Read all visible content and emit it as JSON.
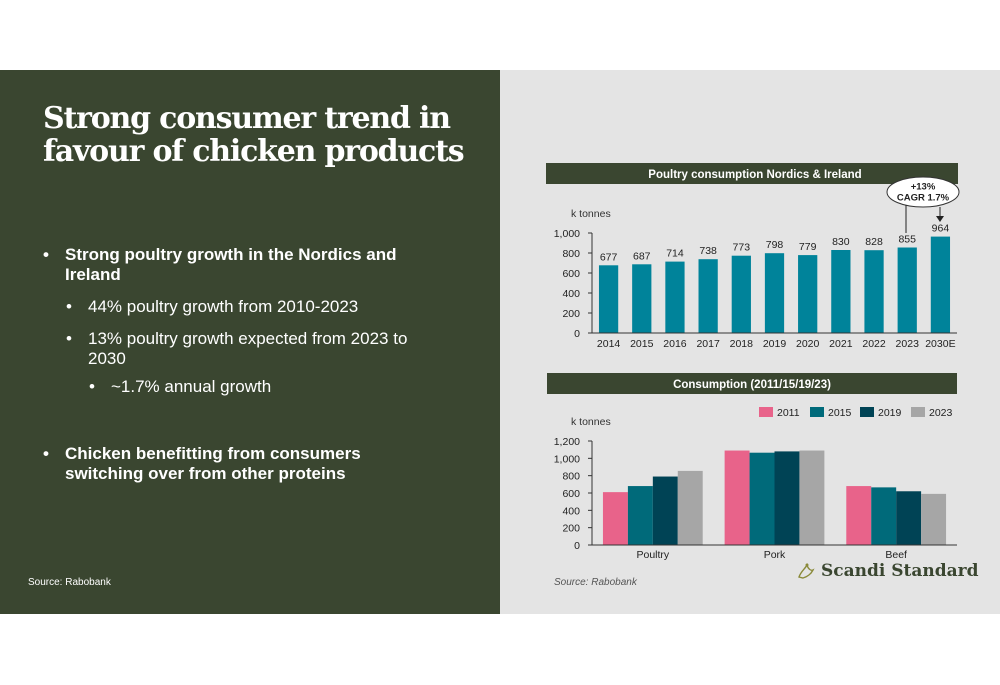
{
  "slide": {
    "title": "Strong consumer trend in favour of chicken products",
    "bullets": [
      {
        "level": 1,
        "text": "Strong poultry growth in the Nordics and Ireland"
      },
      {
        "level": 2,
        "text": "44% poultry growth from 2010-2023"
      },
      {
        "level": 2,
        "text": "13% poultry growth expected from 2023 to 2030"
      },
      {
        "level": 3,
        "text": "~1.7% annual growth"
      },
      {
        "level": 1,
        "text": "Chicken benefitting from consumers switching over from other proteins"
      }
    ],
    "source_left": "Source: Rabobank",
    "source_right": "Source: Rabobank",
    "logo_text": "Scandi Standard"
  },
  "colors": {
    "dark_green": "#3a4630",
    "bar_teal": "#00839a",
    "s2011": "#e8638a",
    "s2015": "#006a7a",
    "s2019": "#004355",
    "s2023": "#a6a6a6"
  },
  "chart_data": [
    {
      "type": "bar",
      "title": "Poultry consumption Nordics & Ireland",
      "ylabel": "k tonnes",
      "categories": [
        "2014",
        "2015",
        "2016",
        "2017",
        "2018",
        "2019",
        "2020",
        "2021",
        "2022",
        "2023",
        "2030E"
      ],
      "values": [
        677,
        687,
        714,
        738,
        773,
        798,
        779,
        830,
        828,
        855,
        964
      ],
      "ylim": [
        0,
        1000
      ],
      "yticks": [
        0,
        200,
        400,
        600,
        800,
        1000
      ],
      "ytick_labels": [
        "0",
        "200",
        "400",
        "600",
        "800",
        "1,000"
      ],
      "grid": false,
      "annotation": {
        "line1": "+13%",
        "line2": "CAGR 1.7%"
      }
    },
    {
      "type": "bar",
      "title": "Consumption (2011/15/19/23)",
      "ylabel": "k tonnes",
      "categories": [
        "Poultry",
        "Pork",
        "Beef"
      ],
      "series": [
        {
          "name": "2011",
          "values": [
            610,
            1090,
            680
          ]
        },
        {
          "name": "2015",
          "values": [
            680,
            1065,
            665
          ]
        },
        {
          "name": "2019",
          "values": [
            790,
            1080,
            620
          ]
        },
        {
          "name": "2023",
          "values": [
            855,
            1090,
            590
          ]
        }
      ],
      "ylim": [
        0,
        1200
      ],
      "yticks": [
        0,
        200,
        400,
        600,
        800,
        1000,
        1200
      ],
      "ytick_labels": [
        "0",
        "200",
        "400",
        "600",
        "800",
        "1,000",
        "1,200"
      ],
      "legend": "top-right",
      "grid": false
    }
  ]
}
